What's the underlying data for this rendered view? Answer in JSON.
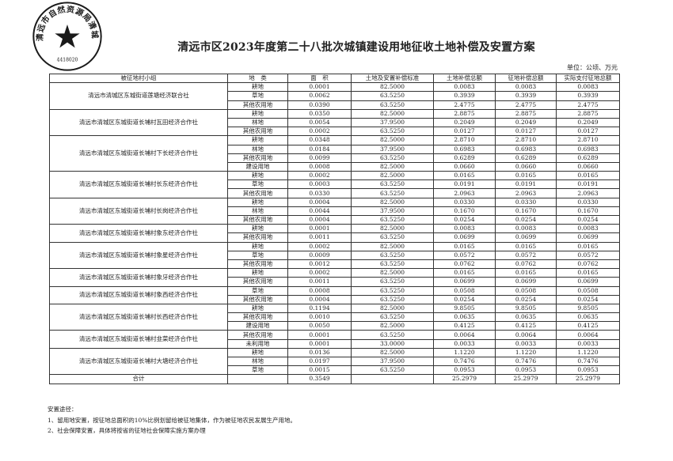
{
  "title": "清远市区2023年度第二十八批次城镇建设用地征收土地补偿及安置方案",
  "unit": "单位：公顷、万元",
  "stamp": {
    "text": "清远市自然资源局清城分局",
    "code": "4418020",
    "color": "#1a1a1a"
  },
  "table": {
    "headers": [
      "被征地村小组",
      "地　类",
      "面　积",
      "土地及安置补偿标准",
      "土地补偿总额",
      "征地补偿总额",
      "实际支付征地总额"
    ],
    "groups": [
      {
        "name": "清远市清城区东城街道莲塘经济联合社",
        "rows": [
          [
            "耕地",
            "0.0001",
            "82.5000",
            "0.0083",
            "0.0083",
            "0.0083"
          ],
          [
            "草地",
            "0.0062",
            "63.5250",
            "0.3939",
            "0.3939",
            "0.3939"
          ],
          [
            "其他农用地",
            "0.0390",
            "63.5250",
            "2.4775",
            "2.4775",
            "2.4775"
          ]
        ]
      },
      {
        "name": "清远市清城区东城街道长埔村瓦田经济合作社",
        "rows": [
          [
            "耕地",
            "0.0350",
            "82.5000",
            "2.8875",
            "2.8875",
            "2.8875"
          ],
          [
            "林地",
            "0.0054",
            "37.9500",
            "0.2049",
            "0.2049",
            "0.2049"
          ],
          [
            "其他农用地",
            "0.0002",
            "63.5250",
            "0.0127",
            "0.0127",
            "0.0127"
          ]
        ]
      },
      {
        "name": "清远市清城区东城街道长埔村下长经济合作社",
        "rows": [
          [
            "耕地",
            "0.0348",
            "82.5000",
            "2.8710",
            "2.8710",
            "2.8710"
          ],
          [
            "林地",
            "0.0184",
            "37.9500",
            "0.6983",
            "0.6983",
            "0.6983"
          ],
          [
            "其他农用地",
            "0.0099",
            "63.5250",
            "0.6289",
            "0.6289",
            "0.6289"
          ],
          [
            "建设用地",
            "0.0008",
            "82.5000",
            "0.0660",
            "0.0660",
            "0.0660"
          ]
        ]
      },
      {
        "name": "清远市清城区东城街道长埔村长东经济合作社",
        "rows": [
          [
            "耕地",
            "0.0002",
            "82.5000",
            "0.0165",
            "0.0165",
            "0.0165"
          ],
          [
            "草地",
            "0.0003",
            "63.5250",
            "0.0191",
            "0.0191",
            "0.0191"
          ],
          [
            "其他农用地",
            "0.0330",
            "63.5250",
            "2.0963",
            "2.0963",
            "2.0963"
          ]
        ]
      },
      {
        "name": "清远市清城区东城街道长埔村长岗经济合作社",
        "rows": [
          [
            "耕地",
            "0.0004",
            "82.5000",
            "0.0330",
            "0.0330",
            "0.0330"
          ],
          [
            "林地",
            "0.0044",
            "37.9500",
            "0.1670",
            "0.1670",
            "0.1670"
          ],
          [
            "其他农用地",
            "0.0004",
            "63.5250",
            "0.0254",
            "0.0254",
            "0.0254"
          ]
        ]
      },
      {
        "name": "清远市清城区东城街道长埔村象东经济合作社",
        "rows": [
          [
            "耕地",
            "0.0001",
            "82.5000",
            "0.0083",
            "0.0083",
            "0.0083"
          ],
          [
            "其他农用地",
            "0.0011",
            "63.5250",
            "0.0699",
            "0.0699",
            "0.0699"
          ]
        ]
      },
      {
        "name": "清远市清城区东城街道长埔村象星经济合作社",
        "rows": [
          [
            "耕地",
            "0.0002",
            "82.5000",
            "0.0165",
            "0.0165",
            "0.0165"
          ],
          [
            "草地",
            "0.0009",
            "63.5250",
            "0.0572",
            "0.0572",
            "0.0572"
          ],
          [
            "其他农用地",
            "0.0012",
            "63.5250",
            "0.0762",
            "0.0762",
            "0.0762"
          ]
        ]
      },
      {
        "name": "清远市清城区东城街道长埔村象牙经济合作社",
        "rows": [
          [
            "耕地",
            "0.0002",
            "82.5000",
            "0.0165",
            "0.0165",
            "0.0165"
          ],
          [
            "其他农用地",
            "0.0011",
            "63.5250",
            "0.0699",
            "0.0699",
            "0.0699"
          ]
        ]
      },
      {
        "name": "清远市清城区东城街道长埔村象西经济合作社",
        "rows": [
          [
            "草地",
            "0.0008",
            "63.5250",
            "0.0508",
            "0.0508",
            "0.0508"
          ],
          [
            "其他农用地",
            "0.0004",
            "63.5250",
            "0.0254",
            "0.0254",
            "0.0254"
          ]
        ]
      },
      {
        "name": "清远市清城区东城街道长埔村长西经济合作社",
        "rows": [
          [
            "耕地",
            "0.1194",
            "82.5000",
            "9.8505",
            "9.8505",
            "9.8505"
          ],
          [
            "其他农用地",
            "0.0010",
            "63.5250",
            "0.0635",
            "0.0635",
            "0.0635"
          ],
          [
            "建设用地",
            "0.0050",
            "82.5000",
            "0.4125",
            "0.4125",
            "0.4125"
          ]
        ]
      },
      {
        "name": "清远市清城区东城街道长埔村韭菜经济合作社",
        "rows": [
          [
            "其他农用地",
            "0.0001",
            "63.5250",
            "0.0064",
            "0.0064",
            "0.0064"
          ],
          [
            "未利用地",
            "0.0001",
            "33.0000",
            "0.0033",
            "0.0033",
            "0.0033"
          ]
        ]
      },
      {
        "name": "清远市清城区东城街道长埔村大塘经济合作社",
        "rows": [
          [
            "耕地",
            "0.0136",
            "82.5000",
            "1.1220",
            "1.1220",
            "1.1220"
          ],
          [
            "林地",
            "0.0197",
            "37.9500",
            "0.7476",
            "0.7476",
            "0.7476"
          ],
          [
            "草地",
            "0.0015",
            "63.5250",
            "0.0953",
            "0.0953",
            "0.0953"
          ]
        ]
      }
    ],
    "total": {
      "label": "合计",
      "area": "0.3549",
      "land_comp": "25.2979",
      "expropriation_comp": "25.2979",
      "actual_paid": "25.2979"
    }
  },
  "notes": {
    "heading": "安置途径：",
    "items": [
      "1、留用地安置，按征地总面积的10%比例划留给被征地集体，作为被征地农民发展生产用地。",
      "2、社会保障安置，具体将按省的征地社会保障实施方案办理"
    ]
  }
}
